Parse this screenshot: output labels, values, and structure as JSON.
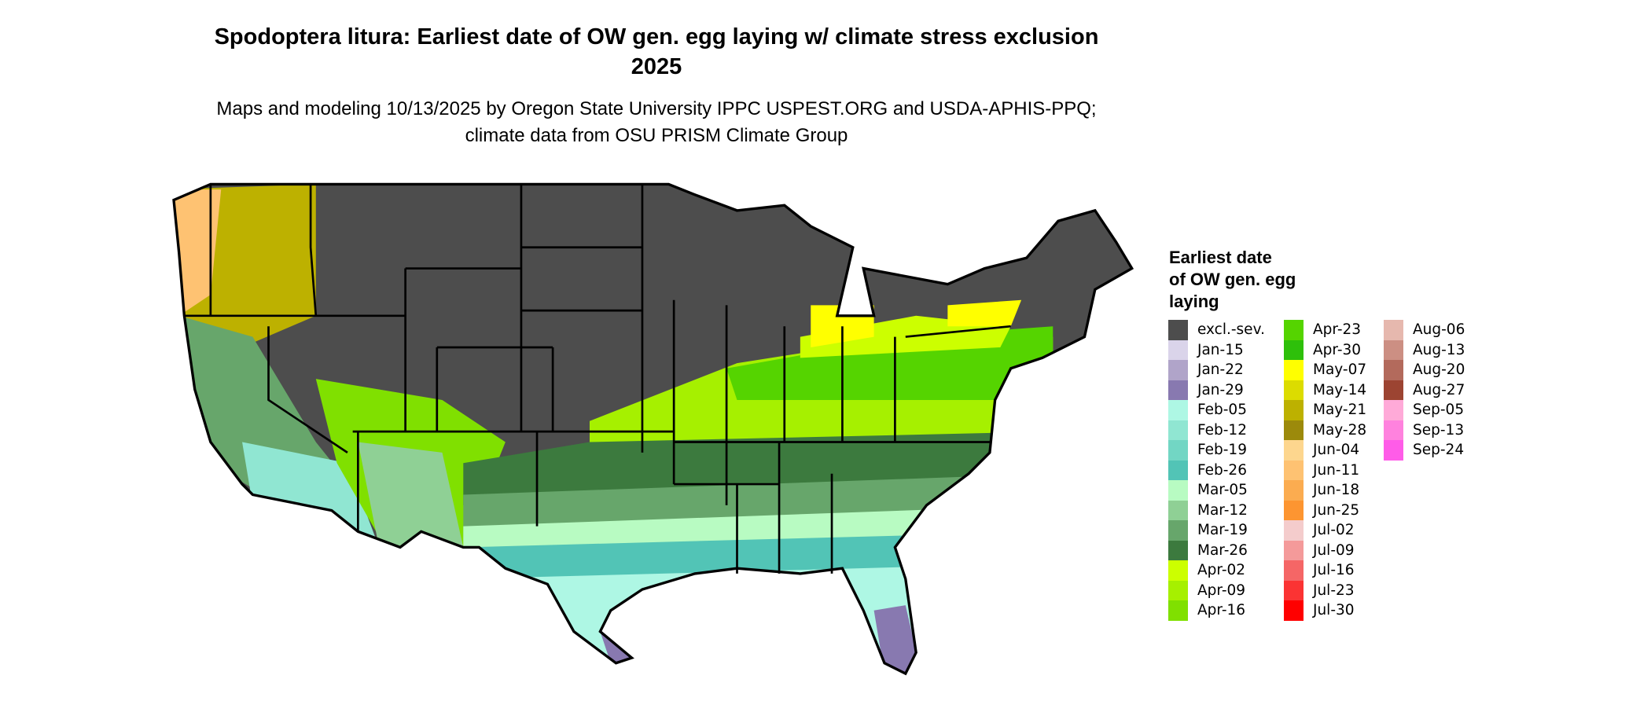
{
  "title": "Spodoptera litura: Earliest date of OW gen. egg laying w/ climate stress exclusion 2025",
  "subtitle": "Maps and modeling 10/13/2025 by Oregon State University IPPC USPEST.ORG and USDA-APHIS-PPQ; climate data from OSU PRISM Climate Group",
  "legend": {
    "title": "Earliest date of OW gen. egg laying",
    "items": [
      {
        "label": "excl.-sev.",
        "color": "#4d4d4d"
      },
      {
        "label": "Jan-15",
        "color": "#dad4ea"
      },
      {
        "label": "Jan-22",
        "color": "#b0a4c9"
      },
      {
        "label": "Jan-29",
        "color": "#8879b0"
      },
      {
        "label": "Feb-05",
        "color": "#aef7e4"
      },
      {
        "label": "Feb-12",
        "color": "#90e6d2"
      },
      {
        "label": "Feb-19",
        "color": "#72d6c4"
      },
      {
        "label": "Feb-26",
        "color": "#52c4b6"
      },
      {
        "label": "Mar-05",
        "color": "#b8fbc2"
      },
      {
        "label": "Mar-12",
        "color": "#8fd095"
      },
      {
        "label": "Mar-19",
        "color": "#67a66b"
      },
      {
        "label": "Mar-26",
        "color": "#3c7a3e"
      },
      {
        "label": "Apr-02",
        "color": "#ccff00"
      },
      {
        "label": "Apr-09",
        "color": "#a6f000"
      },
      {
        "label": "Apr-16",
        "color": "#80e000"
      },
      {
        "label": "Apr-23",
        "color": "#55d400"
      },
      {
        "label": "Apr-30",
        "color": "#2ec00a"
      },
      {
        "label": "May-07",
        "color": "#ffff00"
      },
      {
        "label": "May-14",
        "color": "#dcdc00"
      },
      {
        "label": "May-21",
        "color": "#bdb100"
      },
      {
        "label": "May-28",
        "color": "#9c8a0b"
      },
      {
        "label": "Jun-04",
        "color": "#fdd68e"
      },
      {
        "label": "Jun-11",
        "color": "#fec272"
      },
      {
        "label": "Jun-18",
        "color": "#fbac50"
      },
      {
        "label": "Jun-25",
        "color": "#fd9531"
      },
      {
        "label": "Jul-02",
        "color": "#f4cccc"
      },
      {
        "label": "Jul-09",
        "color": "#f49a9a"
      },
      {
        "label": "Jul-16",
        "color": "#f56666"
      },
      {
        "label": "Jul-23",
        "color": "#fb3333"
      },
      {
        "label": "Jul-30",
        "color": "#ff0000"
      },
      {
        "label": "Aug-06",
        "color": "#e6b8ae"
      },
      {
        "label": "Aug-13",
        "color": "#cc8f83"
      },
      {
        "label": "Aug-20",
        "color": "#b36a5c"
      },
      {
        "label": "Aug-27",
        "color": "#9c4432"
      },
      {
        "label": "Sep-05",
        "color": "#ffaad8"
      },
      {
        "label": "Sep-13",
        "color": "#ff82de"
      },
      {
        "label": "Sep-24",
        "color": "#ff5ce8"
      }
    ]
  }
}
